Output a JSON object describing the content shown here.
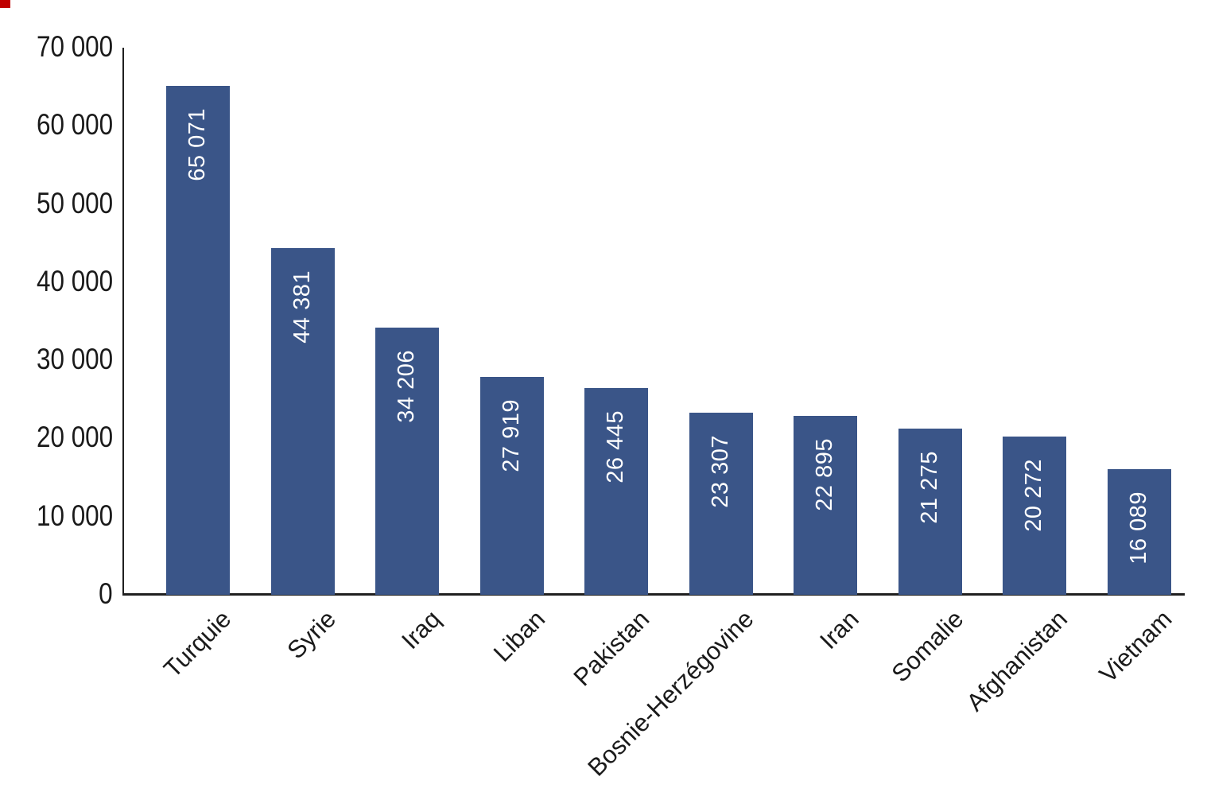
{
  "chart_data": {
    "type": "bar",
    "title": "",
    "xlabel": "",
    "ylabel": "",
    "categories": [
      "Turquie",
      "Syrie",
      "Iraq",
      "Liban",
      "Pakistan",
      "Bosnie-Herzégovine",
      "Iran",
      "Somalie",
      "Afghanistan",
      "Vietnam"
    ],
    "values": [
      65071,
      44381,
      34206,
      27919,
      26445,
      23307,
      22895,
      21275,
      20272,
      16089
    ],
    "value_labels": [
      "65 071",
      "44 381",
      "34 206",
      "27 919",
      "26 445",
      "23 307",
      "22 895",
      "21 275",
      "20 272",
      "16 089"
    ],
    "ylim": [
      0,
      70000
    ],
    "ytick_interval": 10000,
    "ytick_labels": [
      "0",
      "10 000",
      "20 000",
      "30 000",
      "40 000",
      "50 000",
      "60 000",
      "70 000"
    ],
    "grid": false,
    "legend": null,
    "colors": {
      "bar_fill": "#3A5588",
      "value_label": "#FFFFFF",
      "axis_line": "#1F1F1F",
      "tick_text": "#1A1A1A",
      "corner_marker": "#C00000"
    }
  }
}
